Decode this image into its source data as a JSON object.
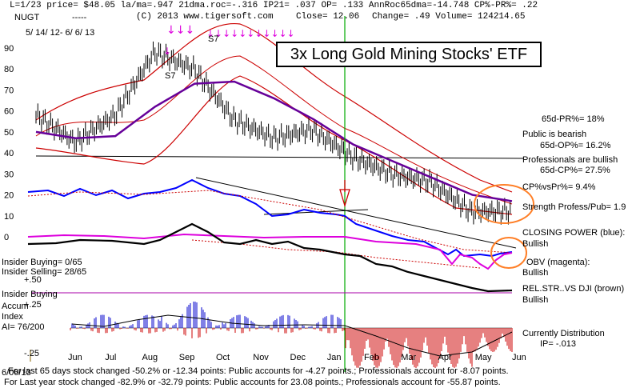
{
  "header": {
    "line1": "L=1/23  price= $48.05  la/ma=.947 21dma.roc=-.316 IP21= .037 OP= .133 AnnRoc65dma=-14.748 CP%-PR%=  .22",
    "ticker": "NUGT",
    "dashes": "-----",
    "copyright": "(C) 2013 www.tigersoft.com",
    "close": "Close=   12.06",
    "change": "Change= .49 Volume= 124214.65",
    "date_range": "5/ 14/ 12-  6/ 6/ 13"
  },
  "title": "3x Long Gold Mining Stocks' ETF",
  "signals": {
    "s7_top": "S7",
    "s7_left": "S7"
  },
  "right_panel": {
    "pr65": "65d-PR%= 18%",
    "public": "Public is bearish",
    "op65": "65d-OP%= 16.2%",
    "professionals": "Professionals are bullish",
    "cp65": "65d-CP%= 27.5%",
    "cpvspr": "CP%vsPr%=  9.4%",
    "strength": "Strength Profess/Pub= 1.9",
    "closing_power": "CLOSING POWER (blue):",
    "cp_bullish": "Bullish",
    "obv": "OBV (magenta):",
    "obv_bullish": "Bullish",
    "relstr": "REL.STR..VS DJI (brown)",
    "relstr_bullish": "Bullish",
    "distribution": "Currently Distribution",
    "ip": "IP= -.013"
  },
  "left_panel": {
    "insider_buying": "Insider Buying= 0/65",
    "insider_selling": "Insider Selling= 28/65",
    "plus50": "+.50",
    "insider_buying2": "Insider Buying",
    "accum": "Accum",
    "index": "Index",
    "plus25": "+.25",
    "ai": "AI= 76/200",
    "minus25": "-.25",
    "date_stamp": "6/06/13"
  },
  "footer": {
    "line1": "For last 65 days stock changed -50.2% or -12.34 points:  Public accounts for -4.27 points.;  Professionals account for -8.07 points.",
    "line2": "For Last year stock changed -82.9% or -32.79 points:  Public accounts for  23.08 points.;  Professionals account for -55.87 points."
  },
  "colors": {
    "price": "#000000",
    "ma_red": "#cc0000",
    "ma_purple": "#660099",
    "closing_power": "#0000ff",
    "obv": "#dd00dd",
    "rel_str": "#000000",
    "accum_pos": "#0000cc",
    "accum_neg": "#cc0000",
    "signal_line": "#00aa00",
    "highlight": "#ff7f27",
    "sell_marker": "#dd00dd"
  },
  "chart_data": {
    "type": "line",
    "title": "3x Long Gold Mining Stocks' ETF",
    "x_tick_labels": [
      "Jun",
      "Jul",
      "Aug",
      "Sep",
      "Oct",
      "Nov",
      "Dec",
      "Jan",
      "Feb",
      "Mar",
      "Apr",
      "May",
      "Jun"
    ],
    "y_tick_labels": [
      "90",
      "80",
      "70",
      "60",
      "50",
      "40",
      "30",
      "20",
      "10",
      "0"
    ],
    "ylim": [
      0,
      95
    ],
    "price_series": {
      "name": "NUGT close",
      "x": [
        "Jun",
        "Jul",
        "Aug",
        "Sep",
        "Oct",
        "Nov",
        "Dec",
        "Jan",
        "Feb",
        "Mar",
        "Apr",
        "May",
        "Jun"
      ],
      "values": [
        58,
        45,
        58,
        88,
        80,
        56,
        47,
        51,
        38,
        30,
        26,
        12,
        12.06
      ]
    },
    "ma_purple": {
      "name": "65-day moving average",
      "values": [
        50,
        47,
        48,
        62,
        73,
        74,
        66,
        56,
        44,
        36,
        28,
        20,
        17
      ]
    }
  }
}
